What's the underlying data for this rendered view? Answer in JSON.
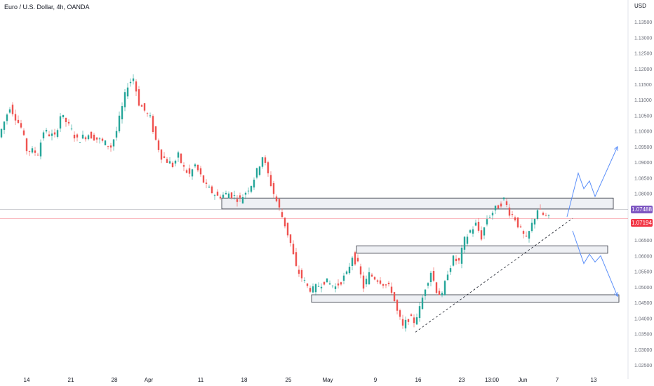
{
  "header": {
    "title": "Euro / U.S. Dollar, 4h, OANDA"
  },
  "price_axis": {
    "unit": "USD",
    "current_price": "1.07194",
    "marked_price": "1.07488"
  },
  "colors": {
    "up": "#26a69a",
    "down": "#ef5350",
    "marked_badge": "#7e57c2",
    "current_badge": "#f23645",
    "projection": "#5b8ff9",
    "zone_fill": "#eef0f4",
    "zone_stroke": "#2a2e39",
    "axis_text": "#6a6d78"
  },
  "chart_data": {
    "type": "candlestick",
    "title": "Euro / U.S. Dollar, 4h, OANDA",
    "ylabel": "USD",
    "ylim": [
      1.025,
      1.1375
    ],
    "y_ticks": [
      "1.13500",
      "1.13000",
      "1.12500",
      "1.12000",
      "1.11500",
      "1.11000",
      "1.10500",
      "1.10000",
      "1.09500",
      "1.09000",
      "1.08500",
      "1.08000",
      "1.07500",
      "1.07000",
      "1.06500",
      "1.06000",
      "1.05500",
      "1.05000",
      "1.04500",
      "1.04000",
      "1.03500",
      "1.03000",
      "1.02500"
    ],
    "x_ticks": [
      "14",
      "21",
      "28",
      "Apr",
      "11",
      "18",
      "25",
      "May",
      "9",
      "16",
      "23",
      "13:00",
      "Jun",
      "7",
      "13"
    ],
    "price_path": [
      [
        0,
        1.098
      ],
      [
        2,
        1.108
      ],
      [
        4,
        1.101
      ],
      [
        5,
        1.094
      ],
      [
        7,
        1.093
      ],
      [
        8,
        1.1
      ],
      [
        10,
        1.098
      ],
      [
        11,
        1.105
      ],
      [
        12,
        1.103
      ],
      [
        14,
        1.097
      ],
      [
        16,
        1.099
      ],
      [
        18,
        1.097
      ],
      [
        20,
        1.095
      ],
      [
        21,
        1.1
      ],
      [
        23,
        1.115
      ],
      [
        24,
        1.117
      ],
      [
        25,
        1.109
      ],
      [
        27,
        1.104
      ],
      [
        28,
        1.097
      ],
      [
        29,
        1.092
      ],
      [
        31,
        1.089
      ],
      [
        32,
        1.092
      ],
      [
        33,
        1.088
      ],
      [
        34,
        1.086
      ],
      [
        35,
        1.089
      ],
      [
        37,
        1.082
      ],
      [
        39,
        1.079
      ],
      [
        41,
        1.08
      ],
      [
        43,
        1.078
      ],
      [
        45,
        1.083
      ],
      [
        46,
        1.087
      ],
      [
        47,
        1.092
      ],
      [
        48,
        1.086
      ],
      [
        49,
        1.08
      ],
      [
        50,
        1.075
      ],
      [
        51,
        1.07
      ],
      [
        52,
        1.064
      ],
      [
        53,
        1.056
      ],
      [
        55,
        1.05
      ],
      [
        56,
        1.049
      ],
      [
        58,
        1.052
      ],
      [
        60,
        1.05
      ],
      [
        62,
        1.054
      ],
      [
        63,
        1.06
      ],
      [
        64,
        1.057
      ],
      [
        65,
        1.05
      ],
      [
        66,
        1.054
      ],
      [
        68,
        1.052
      ],
      [
        70,
        1.049
      ],
      [
        71,
        1.042
      ],
      [
        72,
        1.037
      ],
      [
        73,
        1.04
      ],
      [
        74,
        1.039
      ],
      [
        75,
        1.043
      ],
      [
        76,
        1.05
      ],
      [
        77,
        1.055
      ],
      [
        78,
        1.049
      ],
      [
        79,
        1.047
      ],
      [
        80,
        1.055
      ],
      [
        81,
        1.059
      ],
      [
        82,
        1.058
      ],
      [
        83,
        1.065
      ],
      [
        84,
        1.068
      ],
      [
        85,
        1.07
      ],
      [
        86,
        1.066
      ],
      [
        87,
        1.072
      ],
      [
        88,
        1.074
      ],
      [
        89,
        1.076
      ],
      [
        90,
        1.078
      ],
      [
        91,
        1.074
      ],
      [
        92,
        1.072
      ],
      [
        93,
        1.068
      ],
      [
        94,
        1.065
      ],
      [
        95,
        1.07
      ],
      [
        96,
        1.075
      ],
      [
        97,
        1.073
      ],
      [
        98,
        1.072
      ]
    ],
    "zones": [
      {
        "x_from": 40,
        "x_to": 110,
        "y_low": 1.0759,
        "y_high": 1.0785
      },
      {
        "x_from": 64,
        "x_to": 109,
        "y_low": 1.0617,
        "y_high": 1.0632
      },
      {
        "x_from": 56,
        "x_to": 111,
        "y_low": 1.046,
        "y_high": 1.0475
      }
    ],
    "trendline": {
      "from": [
        74,
        1.0355
      ],
      "to": [
        102,
        1.072
      ]
    },
    "horizontal_lines": [
      {
        "price": 1.07488,
        "color": "#9598a1"
      },
      {
        "price": 1.07194,
        "color": "#f23645"
      }
    ],
    "projections": [
      {
        "path": [
          [
            101,
            1.0725
          ],
          [
            103,
            1.0865
          ],
          [
            104,
            1.0815
          ],
          [
            105,
            1.084
          ],
          [
            106,
            1.079
          ],
          [
            110,
            1.095
          ]
        ]
      },
      {
        "path": [
          [
            102,
            1.068
          ],
          [
            104,
            1.0575
          ],
          [
            105,
            1.0605
          ],
          [
            106,
            1.058
          ],
          [
            107,
            1.06
          ],
          [
            110,
            1.047
          ]
        ]
      }
    ]
  }
}
